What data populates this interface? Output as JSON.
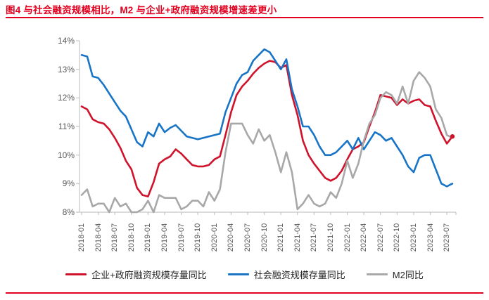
{
  "title": "图4 与社会融资规模相比，M2 与企业+政府融资规模增速差更小",
  "colors": {
    "title_red": "#e3001f",
    "rule_red": "#e3001f",
    "axis_line": "#c6c6c6",
    "tick_label": "#595959",
    "legend_text": "#262626"
  },
  "chart_data": {
    "type": "line",
    "title": "",
    "xlabel": "",
    "ylabel": "",
    "ylim": [
      8,
      14
    ],
    "grid": false,
    "legend_position": "bottom",
    "y_ticks": [
      "14%",
      "13%",
      "12%",
      "11%",
      "10%",
      "9%",
      "8%"
    ],
    "y_tick_values": [
      14,
      13,
      12,
      11,
      10,
      9,
      8
    ],
    "x": [
      "2018-01",
      "2018-02",
      "2018-03",
      "2018-04",
      "2018-05",
      "2018-06",
      "2018-07",
      "2018-08",
      "2018-09",
      "2018-10",
      "2018-11",
      "2018-12",
      "2019-01",
      "2019-02",
      "2019-03",
      "2019-04",
      "2019-05",
      "2019-06",
      "2019-07",
      "2019-08",
      "2019-09",
      "2019-10",
      "2019-11",
      "2019-12",
      "2020-01",
      "2020-02",
      "2020-03",
      "2020-04",
      "2020-05",
      "2020-06",
      "2020-07",
      "2020-08",
      "2020-09",
      "2020-10",
      "2020-11",
      "2020-12",
      "2021-01",
      "2021-02",
      "2021-03",
      "2021-04",
      "2021-05",
      "2021-06",
      "2021-07",
      "2021-08",
      "2021-09",
      "2021-10",
      "2021-11",
      "2021-12",
      "2022-01",
      "2022-02",
      "2022-03",
      "2022-04",
      "2022-05",
      "2022-06",
      "2022-07",
      "2022-08",
      "2022-09",
      "2022-10",
      "2022-11",
      "2022-12",
      "2023-01",
      "2023-02",
      "2023-03",
      "2023-04",
      "2023-05",
      "2023-06",
      "2023-07",
      "2023-08"
    ],
    "x_tick_labels": [
      "2018-01",
      "2018-04",
      "2018-07",
      "2018-10",
      "2019-01",
      "2019-04",
      "2019-07",
      "2019-10",
      "2020-01",
      "2020-04",
      "2020-07",
      "2020-10",
      "2021-01",
      "2021-04",
      "2021-07",
      "2021-10",
      "2022-01",
      "2022-04",
      "2022-07",
      "2022-10",
      "2023-01",
      "2023-04",
      "2023-07"
    ],
    "x_tick_every": 3,
    "series": [
      {
        "name": "企业+政府融资规模存量同比",
        "color": "#d0122b",
        "end_marker": true,
        "values": [
          11.7,
          11.6,
          11.25,
          11.15,
          11.1,
          10.9,
          10.6,
          10.25,
          9.8,
          9.5,
          8.85,
          8.6,
          8.55,
          9.05,
          9.7,
          9.85,
          9.95,
          10.2,
          10.05,
          9.85,
          9.65,
          9.6,
          9.6,
          9.65,
          9.85,
          9.95,
          10.7,
          11.5,
          12.1,
          12.4,
          12.6,
          12.85,
          13.05,
          13.2,
          13.3,
          13.25,
          13.05,
          13.15,
          12.1,
          11.4,
          10.5,
          10.0,
          9.7,
          9.45,
          9.2,
          9.1,
          9.2,
          9.45,
          9.85,
          10.2,
          10.3,
          10.45,
          11.0,
          11.5,
          12.1,
          12.05,
          12.0,
          11.75,
          11.95,
          11.8,
          11.9,
          11.95,
          11.75,
          11.7,
          11.2,
          10.75,
          10.4,
          10.65
        ]
      },
      {
        "name": "社会融资规模存量同比",
        "color": "#1874c6",
        "end_marker": false,
        "values": [
          13.5,
          13.45,
          12.75,
          12.7,
          12.45,
          12.15,
          11.85,
          11.55,
          11.35,
          10.9,
          10.45,
          10.3,
          10.8,
          10.65,
          11.1,
          10.8,
          10.95,
          11.05,
          10.85,
          10.65,
          10.6,
          10.55,
          10.6,
          10.65,
          10.7,
          10.75,
          11.5,
          12.0,
          12.5,
          12.8,
          12.9,
          13.3,
          13.5,
          13.7,
          13.6,
          13.3,
          13.0,
          13.35,
          12.3,
          11.7,
          11.0,
          11.0,
          10.7,
          10.3,
          10.0,
          10.0,
          10.1,
          10.3,
          10.5,
          10.2,
          10.6,
          10.2,
          10.5,
          10.8,
          10.7,
          10.5,
          10.6,
          10.3,
          10.0,
          9.6,
          9.4,
          9.9,
          10.0,
          10.0,
          9.5,
          9.0,
          8.9,
          9.0
        ]
      },
      {
        "name": "M2同比",
        "color": "#a8a8a8",
        "end_marker": false,
        "values": [
          8.6,
          8.8,
          8.2,
          8.3,
          8.3,
          8.0,
          8.5,
          8.2,
          8.3,
          8.0,
          8.0,
          8.1,
          8.4,
          8.0,
          8.6,
          8.5,
          8.5,
          8.5,
          8.1,
          8.2,
          8.4,
          8.4,
          8.2,
          8.7,
          8.4,
          8.8,
          10.1,
          11.1,
          11.1,
          11.1,
          10.7,
          10.4,
          10.9,
          10.5,
          10.7,
          10.1,
          9.4,
          10.1,
          9.4,
          8.1,
          8.3,
          8.6,
          8.3,
          8.2,
          8.3,
          8.7,
          8.5,
          9.0,
          9.8,
          9.2,
          9.7,
          10.5,
          11.1,
          11.4,
          12.0,
          12.2,
          12.1,
          11.8,
          12.4,
          11.8,
          12.6,
          12.9,
          12.7,
          12.4,
          11.6,
          11.3,
          10.7,
          10.6
        ]
      }
    ]
  }
}
